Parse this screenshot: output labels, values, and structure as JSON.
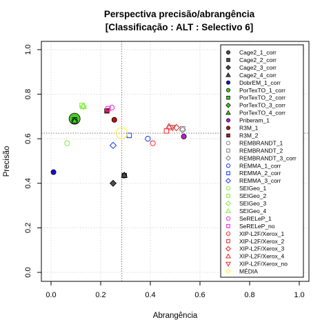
{
  "chart_data": {
    "type": "scatter",
    "title_line1": "Perspectiva precisão/abrangência",
    "title_line2": "[Classificação : ALT : Selectivo 6]",
    "xlabel": "Abrangência",
    "ylabel": "Precisão",
    "xlim": [
      0,
      1
    ],
    "ylim": [
      0,
      1
    ],
    "x_ticks": [
      "0.0",
      "0.2",
      "0.4",
      "0.6",
      "0.8",
      "1.0"
    ],
    "y_ticks": [
      "0.0",
      "0.2",
      "0.4",
      "0.6",
      "0.8",
      "1.0"
    ],
    "grid": true,
    "reference_lines": {
      "x": 0.285,
      "y": 0.625
    },
    "legend_position": "top-right",
    "series": [
      {
        "name": "Cage2_1_corr",
        "marker": "circle",
        "color": "#4d4d4d",
        "filled": true,
        "x": 0.295,
        "y": 0.435
      },
      {
        "name": "Cage2_2_corr",
        "marker": "square",
        "color": "#4d4d4d",
        "filled": true,
        "x": 0.295,
        "y": 0.435
      },
      {
        "name": "Cage2_3_corr",
        "marker": "diamond",
        "color": "#4d4d4d",
        "filled": true,
        "x": 0.25,
        "y": 0.4
      },
      {
        "name": "Cage2_4_corr",
        "marker": "triangle",
        "color": "#4d4d4d",
        "filled": true,
        "x": 0.295,
        "y": 0.437
      },
      {
        "name": "DobrEM_1_corr",
        "marker": "circle",
        "color": "#1414c8",
        "filled": true,
        "x": 0.01,
        "y": 0.45
      },
      {
        "name": "PorTexTO_1_corr",
        "marker": "circle",
        "color": "#44cc22",
        "filled": true,
        "x": 0.095,
        "y": 0.69,
        "large": true
      },
      {
        "name": "PorTexTO_2_corr",
        "marker": "square",
        "color": "#44cc22",
        "filled": true,
        "x": 0.095,
        "y": 0.685
      },
      {
        "name": "PorTexTO_3_corr",
        "marker": "diamond",
        "color": "#44cc22",
        "filled": true,
        "x": 0.095,
        "y": 0.68
      },
      {
        "name": "PorTexTO_4_corr",
        "marker": "triangle",
        "color": "#44cc22",
        "filled": true,
        "x": 0.095,
        "y": 0.68
      },
      {
        "name": "Priberam_1",
        "marker": "circle",
        "color": "#c21ec8",
        "filled": true,
        "x": 0.535,
        "y": 0.61
      },
      {
        "name": "R3M_1",
        "marker": "circle",
        "color": "#bb1111",
        "filled": true,
        "x": 0.255,
        "y": 0.685
      },
      {
        "name": "R3M_2",
        "marker": "square",
        "color": "#bb1111",
        "filled": true,
        "x": 0.225,
        "y": 0.725
      },
      {
        "name": "REMBRANDT_1",
        "marker": "circle",
        "color": "#888888",
        "filled": false,
        "x": 0.48,
        "y": 0.65
      },
      {
        "name": "REMBRANDT_2",
        "marker": "square",
        "color": "#888888",
        "filled": false,
        "x": 0.53,
        "y": 0.645
      },
      {
        "name": "REMBRANDT_3_corr",
        "marker": "diamond",
        "color": "#888888",
        "filled": false,
        "x": 0.53,
        "y": 0.64
      },
      {
        "name": "REMMA_1_corr",
        "marker": "circle",
        "color": "#2244ee",
        "filled": false,
        "x": 0.39,
        "y": 0.6
      },
      {
        "name": "REMMA_2_corr",
        "marker": "square",
        "color": "#2244ee",
        "filled": false,
        "x": 0.315,
        "y": 0.615
      },
      {
        "name": "REMMA_3_corr",
        "marker": "diamond",
        "color": "#2244ee",
        "filled": false,
        "x": 0.25,
        "y": 0.57
      },
      {
        "name": "SEIGeo_1",
        "marker": "circle",
        "color": "#88ee44",
        "filled": false,
        "x": 0.065,
        "y": 0.58
      },
      {
        "name": "SEIGeo_2",
        "marker": "square",
        "color": "#88ee44",
        "filled": false,
        "x": 0.125,
        "y": 0.75
      },
      {
        "name": "SEIGeo_3",
        "marker": "diamond",
        "color": "#88ee44",
        "filled": false,
        "x": 0.13,
        "y": 0.745
      },
      {
        "name": "SEIGeo_4",
        "marker": "triangle",
        "color": "#88ee44",
        "filled": false,
        "x": 0.13,
        "y": 0.745
      },
      {
        "name": "SeRELeP_1",
        "marker": "circle",
        "color": "#ee33dd",
        "filled": false,
        "x": 0.245,
        "y": 0.74
      },
      {
        "name": "SeRELeP_no",
        "marker": "square",
        "color": "#ee33dd",
        "filled": false,
        "x": 0.23,
        "y": 0.735
      },
      {
        "name": "XIP-L2F/Xerox_1",
        "marker": "circle",
        "color": "#ee3333",
        "filled": false,
        "x": 0.41,
        "y": 0.58
      },
      {
        "name": "XIP-L2F/Xerox_2",
        "marker": "square",
        "color": "#ee3333",
        "filled": false,
        "x": 0.465,
        "y": 0.635
      },
      {
        "name": "XIP-L2F/Xerox_3",
        "marker": "diamond",
        "color": "#ee3333",
        "filled": false,
        "x": 0.505,
        "y": 0.65
      },
      {
        "name": "XIP-L2F/Xerox_4",
        "marker": "triangle",
        "color": "#ee3333",
        "filled": false,
        "x": 0.475,
        "y": 0.655
      },
      {
        "name": "XIP-L2F/Xerox_no",
        "marker": "triangle-down",
        "color": "#ee3333",
        "filled": false,
        "x": 0.49,
        "y": 0.65
      },
      {
        "name": "MÉDIA",
        "marker": "circle",
        "color": "#ffee22",
        "filled": false,
        "x": 0.285,
        "y": 0.625,
        "large": true
      }
    ]
  }
}
